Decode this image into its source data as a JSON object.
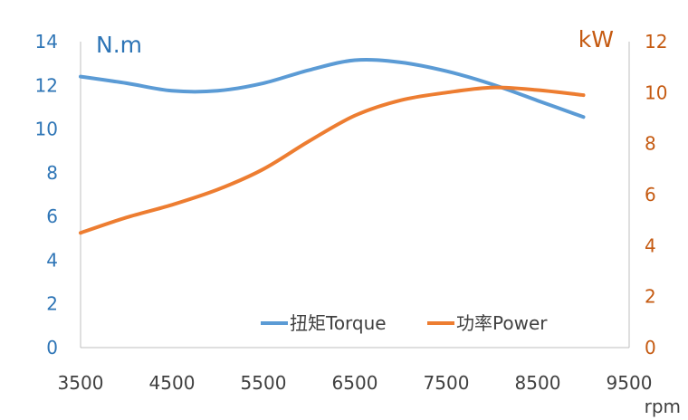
{
  "chart_data": {
    "type": "line",
    "x": [
      3500,
      4000,
      4500,
      5000,
      5500,
      6000,
      6500,
      7000,
      7500,
      8000,
      8500,
      9000
    ],
    "series": [
      {
        "name": "扭矩Torque",
        "axis": "left",
        "color": "#5b9bd5",
        "values": [
          12.4,
          12.1,
          11.75,
          11.75,
          12.1,
          12.7,
          13.15,
          13.05,
          12.65,
          12.05,
          11.3,
          10.55
        ]
      },
      {
        "name": "功率Power",
        "axis": "right",
        "color": "#ed7d31",
        "values": [
          4.5,
          5.1,
          5.6,
          6.2,
          7.0,
          8.1,
          9.1,
          9.7,
          10.0,
          10.2,
          10.1,
          9.9
        ]
      }
    ],
    "left_axis": {
      "unit": "N.m",
      "ylim": [
        0,
        14
      ],
      "ticks": [
        0,
        2,
        4,
        6,
        8,
        10,
        12,
        14
      ],
      "color": "#2e75b6"
    },
    "right_axis": {
      "unit": "kW",
      "ylim": [
        0,
        12
      ],
      "ticks": [
        0,
        2,
        4,
        6,
        8,
        10,
        12
      ],
      "color": "#c55a11"
    },
    "x_axis": {
      "label": "rpm",
      "xlim": [
        3500,
        9500
      ],
      "ticks": [
        3500,
        4500,
        5500,
        6500,
        7500,
        8500,
        9500
      ]
    },
    "grid": false,
    "legend_position": "bottom-right"
  }
}
